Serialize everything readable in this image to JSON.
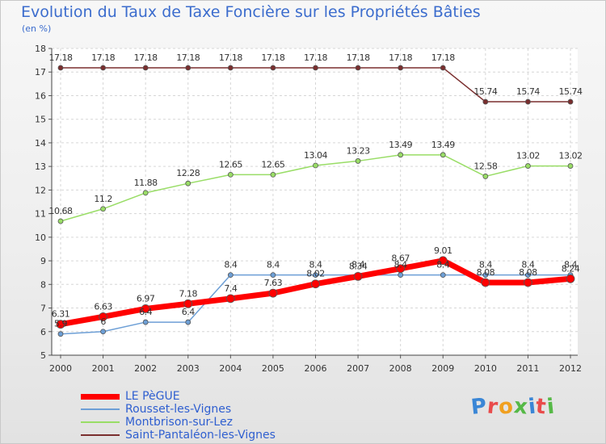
{
  "title": "Evolution du Taux de Taxe Foncière sur les Propriétés Bâties",
  "subtitle": "(en %)",
  "logo_text": "Proxiti",
  "chart_data": {
    "type": "line",
    "x": [
      "2000",
      "2001",
      "2002",
      "2003",
      "2004",
      "2005",
      "2006",
      "2007",
      "2008",
      "2009",
      "2010",
      "2011",
      "2012"
    ],
    "ylim": [
      5,
      18
    ],
    "yticks": [
      5,
      6,
      7,
      8,
      9,
      10,
      11,
      12,
      13,
      14,
      15,
      16,
      17,
      18
    ],
    "grid": true,
    "legend_position": "bottom-left",
    "series": [
      {
        "name": "LE PèGUE",
        "color": "#ff0000",
        "values": [
          6.31,
          6.63,
          6.97,
          7.18,
          7.4,
          7.63,
          8.02,
          8.34,
          8.67,
          9.01,
          8.08,
          8.08,
          8.24
        ],
        "labels": [
          "6.31",
          "6.63",
          "6.97",
          "7.18",
          "7.4",
          "7.63",
          "8.02",
          "8.34",
          "8.67",
          "9.01",
          "8.08",
          "8.08",
          "8.24"
        ]
      },
      {
        "name": "Rousset-les-Vignes",
        "color": "#6d9fd6",
        "values": [
          5.9,
          6,
          6.4,
          6.4,
          8.4,
          8.4,
          8.4,
          8.4,
          8.4,
          8.4,
          8.4,
          8.4,
          8.4
        ],
        "labels": [
          "5.9",
          "6",
          "6.4",
          "6.4",
          "8.4",
          "8.4",
          "8.4",
          "8.4",
          "8.4",
          "8.4",
          "8.4",
          "8.4",
          "8.4"
        ]
      },
      {
        "name": "Montbrison-sur-Lez",
        "color": "#99dd66",
        "values": [
          10.68,
          11.2,
          11.88,
          12.28,
          12.65,
          12.65,
          13.04,
          13.23,
          13.49,
          13.49,
          12.58,
          13.02,
          13.02
        ],
        "labels": [
          "10.68",
          "11.2",
          "11.88",
          "12.28",
          "12.65",
          "12.65",
          "13.04",
          "13.23",
          "13.49",
          "13.49",
          "12.58",
          "13.02",
          "13.02"
        ]
      },
      {
        "name": "Saint-Pantaléon-les-Vignes",
        "color": "#7a2e2e",
        "values": [
          17.18,
          17.18,
          17.18,
          17.18,
          17.18,
          17.18,
          17.18,
          17.18,
          17.18,
          17.18,
          15.74,
          15.74,
          15.74
        ],
        "labels": [
          "17.18",
          "17.18",
          "17.18",
          "17.18",
          "17.18",
          "17.18",
          "17.18",
          "17.18",
          "17.18",
          "17.18",
          "15.74",
          "15.74",
          "15.74"
        ]
      }
    ]
  }
}
